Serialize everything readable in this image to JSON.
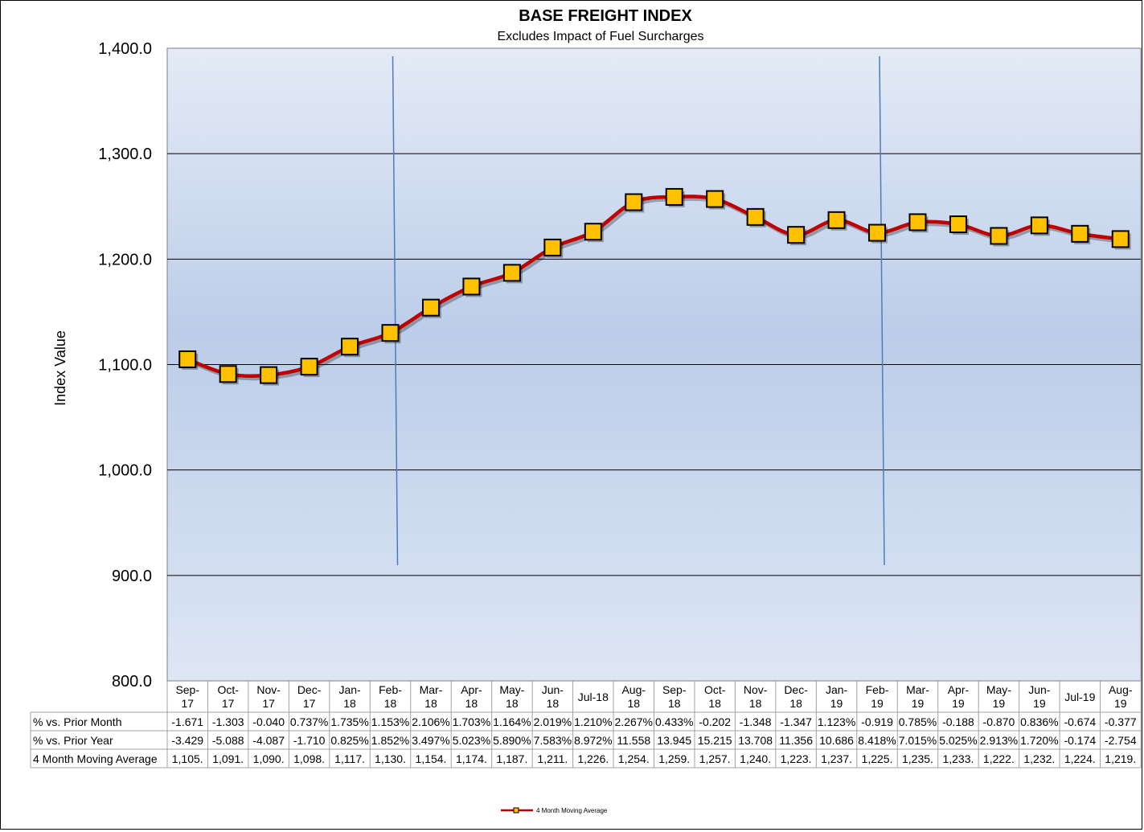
{
  "chart_data": {
    "type": "line",
    "title": "BASE FREIGHT INDEX",
    "subtitle": "Excludes Impact of Fuel Surcharges",
    "ylabel": "Index Value",
    "ylim": [
      800,
      1400
    ],
    "yticks": [
      "800.0",
      "900.0",
      "1,000.0",
      "1,100.0",
      "1,200.0",
      "1,300.0",
      "1,400.0"
    ],
    "grid": true,
    "legend_position": "bottom",
    "categories": [
      [
        "Sep-",
        "17"
      ],
      [
        "Oct-",
        "17"
      ],
      [
        "Nov-",
        "17"
      ],
      [
        "Dec-",
        "17"
      ],
      [
        "Jan-",
        "18"
      ],
      [
        "Feb-",
        "18"
      ],
      [
        "Mar-",
        "18"
      ],
      [
        "Apr-",
        "18"
      ],
      [
        "May-",
        "18"
      ],
      [
        "Jun-",
        "18"
      ],
      [
        "Jul-18"
      ],
      [
        "Aug-",
        "18"
      ],
      [
        "Sep-",
        "18"
      ],
      [
        "Oct-",
        "18"
      ],
      [
        "Nov-",
        "18"
      ],
      [
        "Dec-",
        "18"
      ],
      [
        "Jan-",
        "19"
      ],
      [
        "Feb-",
        "19"
      ],
      [
        "Mar-",
        "19"
      ],
      [
        "Apr-",
        "19"
      ],
      [
        "May-",
        "19"
      ],
      [
        "Jun-",
        "19"
      ],
      [
        "Jul-19"
      ],
      [
        "Aug-",
        "19"
      ]
    ],
    "series": [
      {
        "name": "4 Month Moving Average",
        "color": "#c00000",
        "marker_color": "#ffc000",
        "values": [
          1105,
          1091,
          1090,
          1098,
          1117,
          1130,
          1154,
          1174,
          1187,
          1211,
          1226,
          1254,
          1259,
          1257,
          1240,
          1223,
          1237,
          1225,
          1235,
          1233,
          1222,
          1232,
          1224,
          1219
        ]
      }
    ],
    "vertical_lines_at": [
      "Feb-18",
      "Feb-19"
    ],
    "table": {
      "rows": [
        {
          "label": "% vs. Prior Month",
          "values": [
            "-1.671",
            "-1.303",
            "-0.040",
            "0.737%",
            "1.735%",
            "1.153%",
            "2.106%",
            "1.703%",
            "1.164%",
            "2.019%",
            "1.210%",
            "2.267%",
            "0.433%",
            "-0.202",
            "-1.348",
            "-1.347",
            "1.123%",
            "-0.919",
            "0.785%",
            "-0.188",
            "-0.870",
            "0.836%",
            "-0.674",
            "-0.377"
          ]
        },
        {
          "label": "% vs. Prior Year",
          "values": [
            "-3.429",
            "-5.088",
            "-4.087",
            "-1.710",
            "0.825%",
            "1.852%",
            "3.497%",
            "5.023%",
            "5.890%",
            "7.583%",
            "8.972%",
            "11.558",
            "13.945",
            "15.215",
            "13.708",
            "11.356",
            "10.686",
            "8.418%",
            "7.015%",
            "5.025%",
            "2.913%",
            "1.720%",
            "-0.174",
            "-2.754"
          ]
        },
        {
          "label": "4 Month Moving Average",
          "values": [
            "1,105.",
            "1,091.",
            "1,090.",
            "1,098.",
            "1,117.",
            "1,130.",
            "1,154.",
            "1,174.",
            "1,187.",
            "1,211.",
            "1,226.",
            "1,254.",
            "1,259.",
            "1,257.",
            "1,240.",
            "1,223.",
            "1,237.",
            "1,225.",
            "1,235.",
            "1,233.",
            "1,222.",
            "1,232.",
            "1,224.",
            "1,219."
          ]
        }
      ]
    }
  }
}
